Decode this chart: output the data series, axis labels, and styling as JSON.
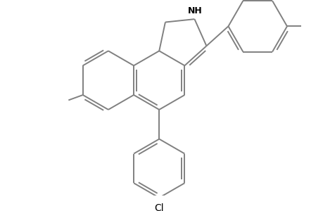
{
  "background_color": "#ffffff",
  "bond_color": "#808080",
  "text_color": "#000000",
  "line_width": 1.4,
  "figsize": [
    4.6,
    3.0
  ],
  "dpi": 100
}
